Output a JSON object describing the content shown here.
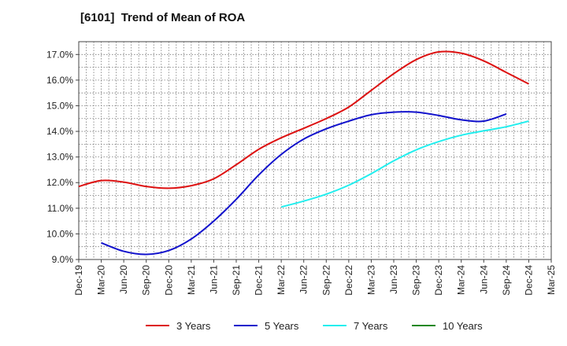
{
  "title": "[6101]  Trend of Mean of ROA",
  "chart_data": {
    "type": "line",
    "title": "[6101]  Trend of Mean of ROA",
    "x_ticks": [
      "Dec-19",
      "Mar-20",
      "Jun-20",
      "Sep-20",
      "Dec-20",
      "Mar-21",
      "Jun-21",
      "Sep-21",
      "Dec-21",
      "Mar-22",
      "Jun-22",
      "Sep-22",
      "Dec-22",
      "Mar-23",
      "Jun-23",
      "Sep-23",
      "Dec-23",
      "Mar-24",
      "Jun-24",
      "Sep-24",
      "Dec-24",
      "Mar-25"
    ],
    "y_ticks": [
      "9.0%",
      "10.0%",
      "11.0%",
      "12.0%",
      "13.0%",
      "14.0%",
      "15.0%",
      "16.0%",
      "17.0%"
    ],
    "ylim": [
      9.0,
      17.5
    ],
    "grid": true,
    "legend_position": "bottom",
    "series": [
      {
        "name": "3 Years",
        "color": "#dd1111",
        "start_index": 0,
        "values": [
          11.85,
          12.08,
          12.02,
          11.85,
          11.78,
          11.88,
          12.15,
          12.7,
          13.3,
          13.75,
          14.12,
          14.5,
          14.95,
          15.6,
          16.25,
          16.8,
          17.1,
          17.05,
          16.75,
          16.3,
          15.85
        ]
      },
      {
        "name": "5 Years",
        "color": "#1111cc",
        "start_index": 1,
        "values": [
          9.65,
          9.32,
          9.2,
          9.35,
          9.8,
          10.5,
          11.35,
          12.3,
          13.1,
          13.7,
          14.1,
          14.4,
          14.65,
          14.75,
          14.75,
          14.62,
          14.45,
          14.4,
          14.68
        ]
      },
      {
        "name": "7 Years",
        "color": "#22eeee",
        "start_index": 9,
        "values": [
          11.05,
          11.28,
          11.55,
          11.9,
          12.35,
          12.85,
          13.28,
          13.6,
          13.85,
          14.02,
          14.18,
          14.4
        ]
      },
      {
        "name": "10 Years",
        "color": "#228822",
        "start_index": 21,
        "values": []
      }
    ]
  }
}
